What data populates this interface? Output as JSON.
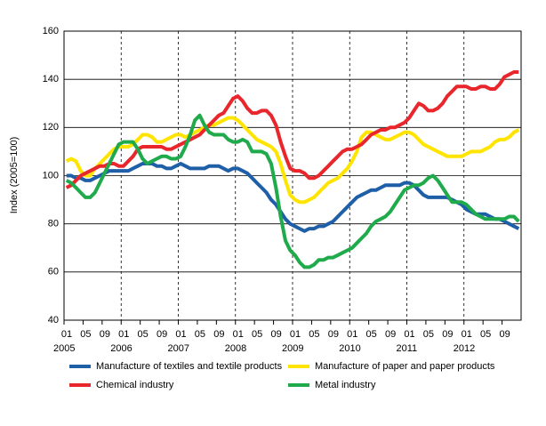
{
  "chart_data": {
    "type": "line",
    "y_label": "Index (2005=100)",
    "categories": [
      "01",
      null,
      null,
      null,
      "05",
      null,
      null,
      null,
      "09",
      null,
      null,
      null,
      "01",
      null,
      null,
      null,
      "05",
      null,
      null,
      null,
      "09",
      null,
      null,
      null,
      "01",
      null,
      null,
      null,
      "05",
      null,
      null,
      null,
      "09",
      null,
      null,
      null,
      "01",
      null,
      null,
      null,
      "05",
      null,
      null,
      null,
      "09",
      null,
      null,
      null,
      "01",
      null,
      null,
      null,
      "05",
      null,
      null,
      null,
      "09",
      null,
      null,
      null,
      "01",
      null,
      null,
      null,
      "05",
      null,
      null,
      null,
      "09",
      null,
      null,
      null,
      "01",
      null,
      null,
      null,
      "05",
      null,
      null,
      null,
      "09",
      null,
      null,
      null,
      "01",
      null,
      null,
      null,
      "05",
      null,
      null,
      null,
      "09",
      null,
      null,
      null
    ],
    "years": [
      "2005",
      "2006",
      "2007",
      "2008",
      "2009",
      "2010",
      "2011",
      "2012"
    ],
    "ylim": [
      40,
      160
    ],
    "yticks": [
      40,
      60,
      80,
      100,
      120,
      140,
      160
    ],
    "grid": true,
    "series": [
      {
        "name": "Manufacture of textiles and textile products",
        "color": "#1f5fa8",
        "values": [
          100,
          100,
          99,
          99,
          98,
          98,
          99,
          100,
          101,
          102,
          102,
          102,
          102,
          102,
          103,
          104,
          105,
          105,
          105,
          104,
          104,
          103,
          103,
          104,
          105,
          104,
          103,
          103,
          103,
          103,
          104,
          104,
          104,
          103,
          102,
          103,
          103,
          102,
          101,
          99,
          97,
          95,
          93,
          90,
          88,
          85,
          82,
          80,
          79,
          78,
          77,
          78,
          78,
          79,
          79,
          80,
          81,
          83,
          85,
          87,
          89,
          91,
          92,
          93,
          94,
          94,
          95,
          96,
          96,
          96,
          96,
          97,
          97,
          96,
          94,
          92,
          91,
          91,
          91,
          91,
          91,
          90,
          89,
          88,
          86,
          85,
          84,
          84,
          84,
          83,
          82,
          82,
          81,
          80,
          79,
          78
        ]
      },
      {
        "name": "Manufacture of paper and paper products",
        "color": "#ffe400",
        "values": [
          106,
          107,
          106,
          102,
          100,
          100,
          103,
          105,
          107,
          109,
          111,
          112,
          112,
          112,
          113,
          115,
          117,
          117,
          116,
          114,
          114,
          115,
          116,
          117,
          117,
          116,
          117,
          118,
          119,
          120,
          121,
          121,
          122,
          123,
          124,
          124,
          123,
          121,
          119,
          117,
          115,
          114,
          113,
          112,
          110,
          105,
          98,
          92,
          90,
          89,
          89,
          90,
          91,
          93,
          95,
          97,
          98,
          99,
          101,
          103,
          106,
          110,
          116,
          118,
          118,
          117,
          116,
          115,
          115,
          116,
          117,
          118,
          118,
          117,
          115,
          113,
          112,
          111,
          110,
          109,
          108,
          108,
          108,
          108,
          109,
          110,
          110,
          110,
          111,
          112,
          114,
          115,
          115,
          116,
          118,
          119
        ]
      },
      {
        "name": "Chemical industry",
        "color": "#e8262b",
        "values": [
          95,
          96,
          98,
          100,
          101,
          102,
          103,
          104,
          104,
          105,
          105,
          104,
          104,
          106,
          108,
          111,
          112,
          112,
          112,
          112,
          112,
          111,
          111,
          112,
          113,
          114,
          115,
          116,
          117,
          119,
          121,
          123,
          125,
          126,
          129,
          132,
          133,
          131,
          128,
          126,
          126,
          127,
          127,
          125,
          121,
          114,
          108,
          103,
          102,
          102,
          101,
          99,
          99,
          100,
          102,
          104,
          106,
          108,
          110,
          111,
          111,
          112,
          113,
          115,
          117,
          118,
          119,
          119,
          120,
          120,
          121,
          122,
          124,
          127,
          130,
          129,
          127,
          127,
          128,
          130,
          133,
          135,
          137,
          137,
          137,
          136,
          136,
          137,
          137,
          136,
          136,
          138,
          141,
          142,
          143,
          143
        ]
      },
      {
        "name": "Metal industry",
        "color": "#1faa4b",
        "values": [
          98,
          97,
          95,
          93,
          91,
          91,
          93,
          97,
          101,
          105,
          109,
          113,
          114,
          114,
          114,
          111,
          107,
          105,
          106,
          107,
          108,
          108,
          107,
          107,
          108,
          112,
          117,
          123,
          125,
          121,
          118,
          117,
          117,
          117,
          115,
          114,
          114,
          115,
          114,
          110,
          110,
          110,
          109,
          105,
          95,
          83,
          73,
          69,
          67,
          64,
          62,
          62,
          63,
          65,
          65,
          66,
          66,
          67,
          68,
          69,
          70,
          72,
          74,
          76,
          79,
          81,
          82,
          83,
          85,
          88,
          91,
          94,
          95,
          96,
          96,
          97,
          99,
          100,
          98,
          95,
          92,
          89,
          89,
          89,
          88,
          86,
          84,
          83,
          82,
          82,
          82,
          82,
          82,
          83,
          83,
          81
        ]
      }
    ]
  }
}
